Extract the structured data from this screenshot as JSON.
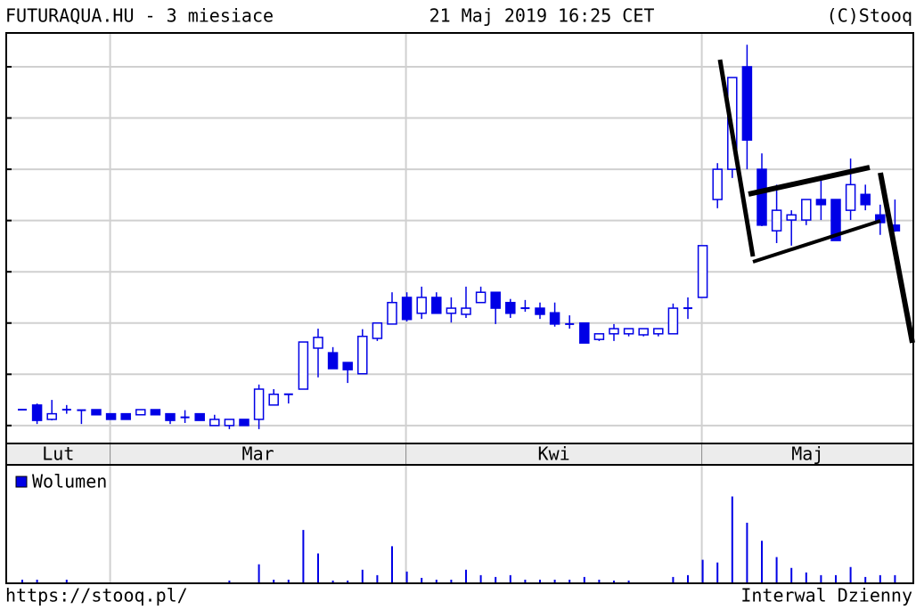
{
  "chart_data": {
    "type": "candlestick",
    "title": "FUTURAQUA.HU - 3 miesiace",
    "subtitle": "21 Maj 2019 16:25 CET",
    "source": "(C)Stooq",
    "footer_left": "https://stooq.pl/",
    "footer_right": "Interwal Dzienny",
    "volume_legend": "Wolumen",
    "months": [
      "Lut",
      "Mar",
      "Kwi",
      "Maj"
    ],
    "up_color": "#ffffff",
    "down_color": "#0000e6",
    "edge_color": "#0000e6",
    "grid": true,
    "ylim": [
      0.65,
      8.66
    ],
    "yticks": [
      1,
      2,
      3,
      4,
      5,
      6,
      7,
      8
    ],
    "volume_ylim": [
      0,
      130
    ],
    "open": [
      1.31,
      1.4,
      1.12,
      1.31,
      1.3,
      1.31,
      1.23,
      1.23,
      1.21,
      1.31,
      1.23,
      1.16,
      1.23,
      1.0,
      1.0,
      1.12,
      1.12,
      1.4,
      1.61,
      1.71,
      2.51,
      2.42,
      2.23,
      2.01,
      2.7,
      2.98,
      3.5,
      3.19,
      3.5,
      3.19,
      3.17,
      3.4,
      3.6,
      3.4,
      3.29,
      3.29,
      3.2,
      2.98,
      3.0,
      2.68,
      2.79,
      2.79,
      2.77,
      2.79,
      2.79,
      3.29,
      3.5,
      5.41,
      6.0,
      8.0,
      6.0,
      4.8,
      5.01,
      5.01,
      5.41,
      5.41,
      5.2,
      5.51,
      5.11,
      4.91
    ],
    "high": [
      1.31,
      1.43,
      1.5,
      1.4,
      1.3,
      1.31,
      1.23,
      1.23,
      1.31,
      1.31,
      1.23,
      1.3,
      1.23,
      1.21,
      1.12,
      1.12,
      1.8,
      1.71,
      1.61,
      2.63,
      2.89,
      2.53,
      2.23,
      2.88,
      3.0,
      3.6,
      3.6,
      3.71,
      3.6,
      3.5,
      3.71,
      3.71,
      3.6,
      3.47,
      3.45,
      3.4,
      3.4,
      3.15,
      3.0,
      2.79,
      2.98,
      2.89,
      2.89,
      2.89,
      3.38,
      3.5,
      4.51,
      6.12,
      7.79,
      8.43,
      6.31,
      5.7,
      5.2,
      5.41,
      5.81,
      5.41,
      6.21,
      5.7,
      5.31,
      5.41
    ],
    "low": [
      1.31,
      1.03,
      1.1,
      1.23,
      1.03,
      1.21,
      1.12,
      1.12,
      1.21,
      1.21,
      1.03,
      1.05,
      1.1,
      1.0,
      0.93,
      1.0,
      0.93,
      1.4,
      1.43,
      1.71,
      1.94,
      2.11,
      1.83,
      2.01,
      2.65,
      2.98,
      3.03,
      3.08,
      3.19,
      3.01,
      3.1,
      3.4,
      2.98,
      3.1,
      3.22,
      3.08,
      2.93,
      2.89,
      2.61,
      2.65,
      2.65,
      2.74,
      2.74,
      2.74,
      2.79,
      3.08,
      3.5,
      5.24,
      5.83,
      6.0,
      4.89,
      4.56,
      4.51,
      4.91,
      5.01,
      4.61,
      5.01,
      5.2,
      4.72,
      4.78
    ],
    "close": [
      1.31,
      1.1,
      1.23,
      1.31,
      1.3,
      1.21,
      1.12,
      1.12,
      1.31,
      1.21,
      1.1,
      1.16,
      1.1,
      1.12,
      1.12,
      1.0,
      1.71,
      1.61,
      1.61,
      2.63,
      2.72,
      2.11,
      2.09,
      2.74,
      3.0,
      3.4,
      3.07,
      3.5,
      3.19,
      3.29,
      3.29,
      3.6,
      3.29,
      3.19,
      3.29,
      3.17,
      2.98,
      2.98,
      2.61,
      2.79,
      2.89,
      2.89,
      2.89,
      2.89,
      3.29,
      3.29,
      4.51,
      6.0,
      7.79,
      6.57,
      4.91,
      5.2,
      5.11,
      5.41,
      5.31,
      4.61,
      5.7,
      5.31,
      4.96,
      4.8
    ],
    "volume": [
      3,
      3,
      0,
      3,
      0,
      0,
      0,
      0,
      0,
      0,
      0,
      0,
      0,
      0,
      2,
      0,
      20,
      3,
      3,
      58,
      32,
      2,
      2,
      14,
      8,
      40,
      12,
      5,
      3,
      3,
      14,
      8,
      6,
      8,
      3,
      3,
      3,
      3,
      6,
      3,
      2,
      2,
      0,
      0,
      6,
      8,
      25,
      22,
      95,
      66,
      46,
      28,
      16,
      11,
      8,
      8,
      17,
      6,
      8,
      8
    ]
  }
}
